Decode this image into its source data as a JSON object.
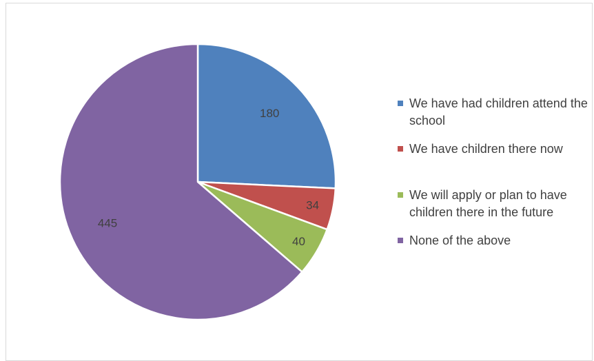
{
  "chart_data": {
    "type": "pie",
    "categories": [
      "We have had children attend the school",
      "We have children there now",
      "We will apply or plan to have children there in the future",
      "None of the above"
    ],
    "values": [
      180,
      34,
      40,
      445
    ],
    "data_labels": [
      "180",
      "34",
      "40",
      "445"
    ],
    "colors": [
      "#4f81bd",
      "#c0504d",
      "#9bbb59",
      "#8064a2"
    ],
    "start_angle_deg": 0,
    "direction": "clockwise",
    "legend_position": "right",
    "title": ""
  }
}
